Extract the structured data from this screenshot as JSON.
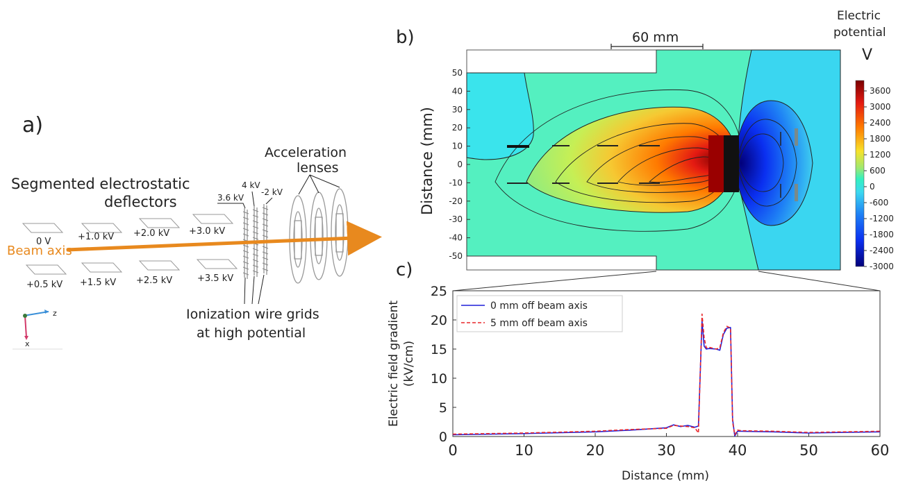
{
  "panel_a": {
    "label": "a)",
    "title_line1": "Segmented electrostatic",
    "title_line2": "deflectors",
    "beam_axis_label": "Beam axis",
    "top_plates": [
      "0 V",
      "+1.0 kV",
      "+2.0 kV",
      "+3.0 kV"
    ],
    "bottom_plates": [
      "+0.5 kV",
      "+1.5 kV",
      "+2.5 kV",
      "+3.5 kV"
    ],
    "grid_voltages": [
      "3.6 kV",
      "4 kV",
      "-2 kV"
    ],
    "lenses_label_line1": "Acceleration",
    "lenses_label_line2": "lenses",
    "grids_label_line1": "Ionization wire grids",
    "grids_label_line2": "at high potential",
    "axis_z": "z",
    "axis_x": "x",
    "beam_color": "#e8891e"
  },
  "panel_b": {
    "label": "b)",
    "scale_bar_label": "60 mm",
    "ylabel": "Distance (mm)",
    "yticks": [
      "50",
      "40",
      "30",
      "20",
      "10",
      "0",
      "-10",
      "-20",
      "-30",
      "-40",
      "-50"
    ],
    "colorbar_title_line1": "Electric",
    "colorbar_title_line2": "potential",
    "colorbar_unit": "V",
    "colorbar_ticks": [
      "3600",
      "3000",
      "2400",
      "1800",
      "1200",
      "600",
      "0",
      "-600",
      "-1200",
      "-1800",
      "-2400",
      "-3000"
    ]
  },
  "panel_c": {
    "label": "c)"
  },
  "chart_data": {
    "type": "line",
    "xlabel": "Distance (mm)",
    "ylabel_line1": "Electric field gradient",
    "ylabel_line2": "(kV/cm)",
    "xlim": [
      0,
      60
    ],
    "ylim": [
      0,
      25
    ],
    "xticks": [
      "0",
      "10",
      "20",
      "30",
      "40",
      "50",
      "60"
    ],
    "yticks": [
      "0",
      "5",
      "10",
      "15",
      "20",
      "25"
    ],
    "legend_position": "top-left",
    "series": [
      {
        "name": "0 mm off beam axis",
        "color": "#1f1fd8",
        "style": "solid",
        "x": [
          0,
          10,
          20,
          25,
          30,
          31,
          32,
          33,
          34,
          34.5,
          35,
          35.3,
          35.6,
          36,
          37,
          37.5,
          38,
          38.5,
          39,
          39.3,
          39.6,
          40,
          40.5,
          45,
          50,
          55,
          60
        ],
        "y": [
          0.3,
          0.5,
          0.8,
          1.1,
          1.5,
          2.0,
          1.7,
          1.9,
          1.6,
          1.8,
          19.8,
          15.5,
          15.0,
          15.1,
          15.0,
          14.8,
          17.5,
          18.6,
          18.7,
          3.0,
          0.1,
          0.9,
          0.9,
          0.8,
          0.6,
          0.7,
          0.8
        ]
      },
      {
        "name": "5 mm off beam axis",
        "color": "#e8262a",
        "style": "dashed",
        "x": [
          0,
          10,
          20,
          25,
          30,
          31,
          32,
          33,
          34,
          34.5,
          35,
          35.3,
          35.6,
          36,
          37,
          37.5,
          38,
          38.5,
          39,
          39.3,
          39.6,
          40,
          40.5,
          45,
          50,
          55,
          60
        ],
        "y": [
          0.4,
          0.6,
          0.9,
          1.2,
          1.4,
          1.9,
          1.8,
          1.7,
          1.5,
          0.6,
          21.0,
          17.0,
          15.2,
          15.3,
          15.0,
          15.2,
          17.8,
          18.9,
          18.6,
          2.5,
          0.3,
          1.1,
          1.0,
          0.9,
          0.7,
          0.8,
          0.9
        ]
      }
    ]
  }
}
